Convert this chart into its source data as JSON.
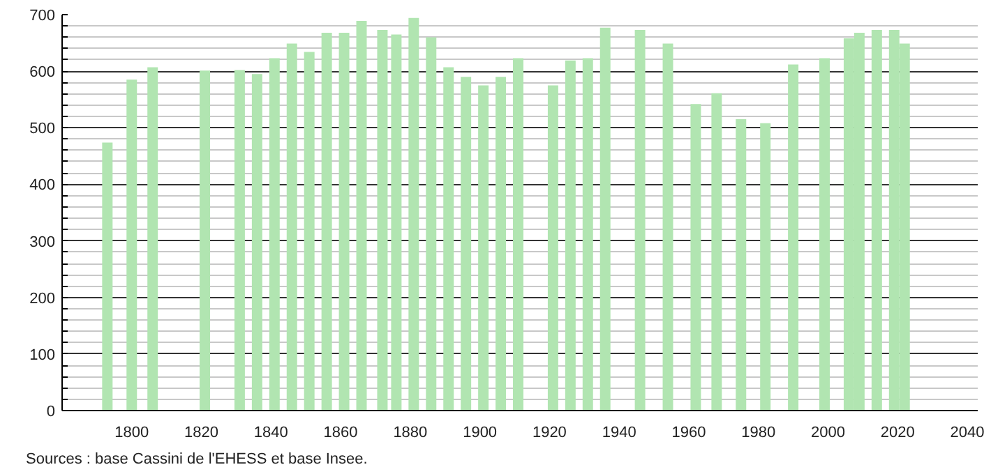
{
  "chart_data": {
    "type": "bar",
    "x": [
      1793,
      1800,
      1806,
      1821,
      1831,
      1836,
      1841,
      1846,
      1851,
      1856,
      1861,
      1866,
      1872,
      1876,
      1881,
      1886,
      1891,
      1896,
      1901,
      1906,
      1911,
      1921,
      1926,
      1931,
      1936,
      1946,
      1954,
      1962,
      1968,
      1975,
      1982,
      1990,
      1999,
      2006,
      2009,
      2014,
      2019,
      2022
    ],
    "values": [
      474,
      585,
      607,
      601,
      602,
      595,
      623,
      649,
      634,
      668,
      668,
      689,
      673,
      665,
      694,
      660,
      607,
      590,
      575,
      590,
      623,
      575,
      619,
      623,
      677,
      673,
      649,
      542,
      561,
      515,
      508,
      612,
      623,
      658,
      668,
      673,
      673,
      649
    ],
    "color": "#b1e5b1",
    "xlim": [
      1780,
      2043
    ],
    "ylim": [
      0,
      700
    ],
    "xticks": [
      1800,
      1820,
      1840,
      1860,
      1880,
      1900,
      1920,
      1940,
      1960,
      1980,
      2000,
      2020,
      2040
    ],
    "yticks": [
      0,
      {
        "value": 20,
        "label": null
      },
      {
        "value": 40,
        "label": null
      },
      {
        "value": 60,
        "label": null
      },
      {
        "value": 80,
        "label": null
      },
      100,
      {
        "value": 120,
        "label": null
      },
      {
        "value": 140,
        "label": null
      },
      {
        "value": 160,
        "label": null
      },
      {
        "value": 180,
        "label": null
      },
      200,
      {
        "value": 220,
        "label": null
      },
      {
        "value": 240,
        "label": null
      },
      {
        "value": 260,
        "label": null
      },
      {
        "value": 280,
        "label": null
      },
      300,
      {
        "value": 320,
        "label": null
      },
      {
        "value": 340,
        "label": null
      },
      {
        "value": 360,
        "label": null
      },
      {
        "value": 380,
        "label": null
      },
      400,
      {
        "value": 420,
        "label": null
      },
      {
        "value": 440,
        "label": null
      },
      {
        "value": 460,
        "label": null
      },
      {
        "value": 480,
        "label": null
      },
      500,
      {
        "value": 520,
        "label": null
      },
      {
        "value": 540,
        "label": null
      },
      {
        "value": 560,
        "label": null
      },
      {
        "value": 580,
        "label": null
      },
      600,
      {
        "value": 620,
        "label": null
      },
      {
        "value": 640,
        "label": null
      },
      {
        "value": 660,
        "label": null
      },
      {
        "value": 680,
        "label": null
      },
      700
    ],
    "grid": "y",
    "annotations": [
      "Sources : base Cassini de l'EHESS et base Insee."
    ]
  }
}
